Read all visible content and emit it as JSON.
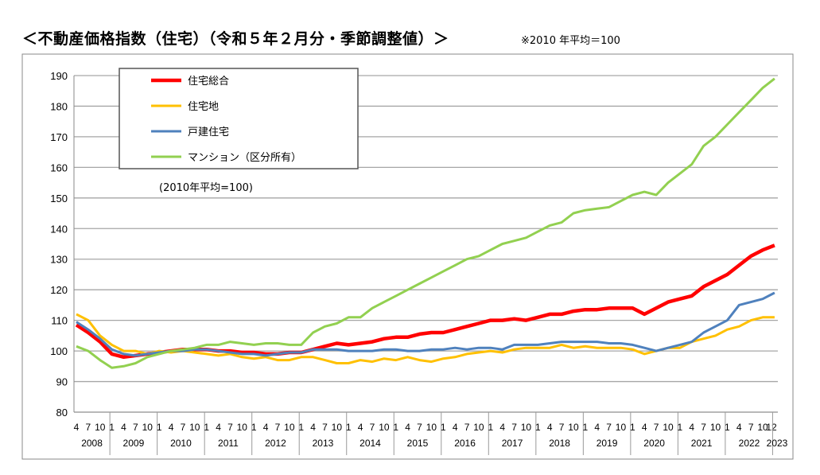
{
  "title": "＜不動産価格指数（住宅）（令和５年２月分・季節調整値）＞",
  "note": "※2010 年平均＝100",
  "chart_data": {
    "type": "line",
    "title": "＜不動産価格指数（住宅）（令和５年２月分・季節調整値）＞",
    "annotation": "(2010年平均=100)",
    "ylim": [
      80,
      190
    ],
    "y_ticks": [
      80,
      90,
      100,
      110,
      120,
      130,
      140,
      150,
      160,
      170,
      180,
      190
    ],
    "grid": true,
    "legend_position": "top-left",
    "x_month_ticks": [
      "1",
      "4",
      "7",
      "10"
    ],
    "x_last_month_tick": "12",
    "x_years": [
      "2008",
      "2009",
      "2010",
      "2011",
      "2012",
      "2013",
      "2014",
      "2015",
      "2016",
      "2017",
      "2018",
      "2019",
      "2020",
      "2021",
      "2022",
      "2023"
    ],
    "x": [
      "2008-04",
      "2008-07",
      "2008-10",
      "2009-01",
      "2009-04",
      "2009-07",
      "2009-10",
      "2010-01",
      "2010-04",
      "2010-07",
      "2010-10",
      "2011-01",
      "2011-04",
      "2011-07",
      "2011-10",
      "2012-01",
      "2012-04",
      "2012-07",
      "2012-10",
      "2013-01",
      "2013-04",
      "2013-07",
      "2013-10",
      "2014-01",
      "2014-04",
      "2014-07",
      "2014-10",
      "2015-01",
      "2015-04",
      "2015-07",
      "2015-10",
      "2016-01",
      "2016-04",
      "2016-07",
      "2016-10",
      "2017-01",
      "2017-04",
      "2017-07",
      "2017-10",
      "2018-01",
      "2018-04",
      "2018-07",
      "2018-10",
      "2019-01",
      "2019-04",
      "2019-07",
      "2019-10",
      "2020-01",
      "2020-04",
      "2020-07",
      "2020-10",
      "2021-01",
      "2021-04",
      "2021-07",
      "2021-10",
      "2022-01",
      "2022-04",
      "2022-07",
      "2022-10",
      "2023-01"
    ],
    "series": [
      {
        "name": "住宅総合",
        "color": "#ff0000",
        "values": [
          108.5,
          106,
          103,
          99,
          98,
          98.5,
          99,
          99.5,
          100,
          100.5,
          100.5,
          100.5,
          100,
          100,
          99.5,
          99.5,
          99,
          99,
          99.5,
          99.5,
          100.5,
          101.5,
          102.5,
          102,
          102.5,
          103,
          104,
          104.5,
          104.5,
          105.5,
          106,
          106,
          107,
          108,
          109,
          110,
          110,
          110.5,
          110,
          111,
          112,
          112,
          113,
          113.5,
          113.5,
          114,
          114,
          114,
          112,
          114,
          116,
          117,
          118,
          121,
          123,
          125,
          128,
          131,
          133,
          134.5
        ]
      },
      {
        "name": "住宅地",
        "color": "#ffc000",
        "values": [
          112,
          110,
          105,
          102,
          100,
          100,
          99,
          100,
          99.5,
          100,
          99.5,
          99,
          98.5,
          99,
          98,
          97.5,
          98,
          97,
          97,
          98,
          98,
          97,
          96,
          96,
          97,
          96.5,
          97.5,
          97,
          98,
          97,
          96.5,
          97.5,
          98,
          99,
          99.5,
          100,
          99.5,
          100.5,
          101,
          101,
          101,
          102,
          101,
          101.5,
          101,
          101,
          101,
          100.5,
          99,
          100,
          101,
          101,
          103,
          104,
          105,
          107,
          108,
          110,
          111,
          111
        ]
      },
      {
        "name": "戸建住宅",
        "color": "#4f81bd",
        "values": [
          109.5,
          107,
          104,
          100.5,
          99,
          98.5,
          99,
          99.5,
          100,
          100,
          100.5,
          100.5,
          100,
          99.5,
          99,
          99,
          98.5,
          99,
          99.5,
          99.5,
          100.5,
          100.5,
          100.5,
          100,
          100,
          100,
          100.5,
          100.5,
          100,
          100,
          100.5,
          100.5,
          101,
          100.5,
          101,
          101,
          100.5,
          102,
          102,
          102,
          102.5,
          103,
          103,
          103,
          103,
          102.5,
          102.5,
          102,
          101,
          100,
          101,
          102,
          103,
          106,
          108,
          110,
          115,
          116,
          117,
          119
        ]
      },
      {
        "name": "マンション（区分所有）",
        "color": "#92d050",
        "values": [
          101.5,
          100,
          97,
          94.5,
          95,
          96,
          98,
          99,
          100,
          100.5,
          101,
          102,
          102,
          103,
          102.5,
          102,
          102.5,
          102.5,
          102,
          102,
          106,
          108,
          109,
          111,
          111,
          114,
          116,
          118,
          120,
          122,
          124,
          126,
          128,
          130,
          131,
          133,
          135,
          136,
          137,
          139,
          141,
          142,
          145,
          146,
          146.5,
          147,
          149,
          151,
          152,
          151,
          155,
          158,
          161,
          167,
          170,
          174,
          178,
          182,
          186,
          189
        ]
      }
    ]
  }
}
